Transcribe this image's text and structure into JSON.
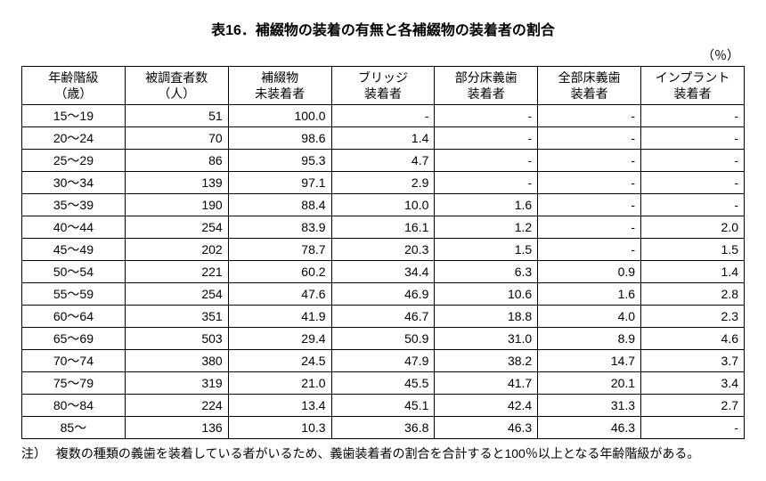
{
  "title": "表16．補綴物の装着の有無と各補綴物の装着者の割合",
  "unit": "（％）",
  "columns": [
    "年齢階級\n（歳）",
    "被調査者数\n（人）",
    "補綴物\n未装着者",
    "ブリッジ\n装着者",
    "部分床義歯\n装着者",
    "全部床義歯\n装着者",
    "インプラント\n装着者"
  ],
  "col_widths": [
    "14.28%",
    "14.28%",
    "14.28%",
    "14.28%",
    "14.28%",
    "14.28%",
    "14.28%"
  ],
  "col_align": [
    "center",
    "right",
    "right",
    "right",
    "right",
    "right",
    "right"
  ],
  "rows": [
    [
      "15～19",
      "51",
      "100.0",
      "-",
      "-",
      "-",
      "-"
    ],
    [
      "20～24",
      "70",
      "98.6",
      "1.4",
      "-",
      "-",
      "-"
    ],
    [
      "25～29",
      "86",
      "95.3",
      "4.7",
      "-",
      "-",
      "-"
    ],
    [
      "30～34",
      "139",
      "97.1",
      "2.9",
      "-",
      "-",
      "-"
    ],
    [
      "35～39",
      "190",
      "88.4",
      "10.0",
      "1.6",
      "-",
      "-"
    ],
    [
      "40～44",
      "254",
      "83.9",
      "16.1",
      "1.2",
      "-",
      "2.0"
    ],
    [
      "45～49",
      "202",
      "78.7",
      "20.3",
      "1.5",
      "-",
      "1.5"
    ],
    [
      "50～54",
      "221",
      "60.2",
      "34.4",
      "6.3",
      "0.9",
      "1.4"
    ],
    [
      "55～59",
      "254",
      "47.6",
      "46.9",
      "10.6",
      "1.6",
      "2.8"
    ],
    [
      "60～64",
      "351",
      "41.9",
      "46.7",
      "18.8",
      "4.0",
      "2.3"
    ],
    [
      "65～69",
      "503",
      "29.4",
      "50.9",
      "31.0",
      "8.9",
      "4.6"
    ],
    [
      "70～74",
      "380",
      "24.5",
      "47.9",
      "38.2",
      "14.7",
      "3.7"
    ],
    [
      "75～79",
      "319",
      "21.0",
      "45.5",
      "41.7",
      "20.1",
      "3.4"
    ],
    [
      "80～84",
      "224",
      "13.4",
      "45.1",
      "42.4",
      "31.3",
      "2.7"
    ],
    [
      "85～",
      "136",
      "10.3",
      "36.8",
      "46.3",
      "46.3",
      "-"
    ]
  ],
  "footnote_label": "注）",
  "footnote_text": "複数の種類の義歯を装着している者がいるため、義歯装着者の割合を合計すると100％以上となる年齢階級がある。",
  "colors": {
    "border": "#000000",
    "text": "#000000",
    "background": "#ffffff"
  },
  "fonts": {
    "title_size_pt": 12,
    "body_size_pt": 10.5
  }
}
